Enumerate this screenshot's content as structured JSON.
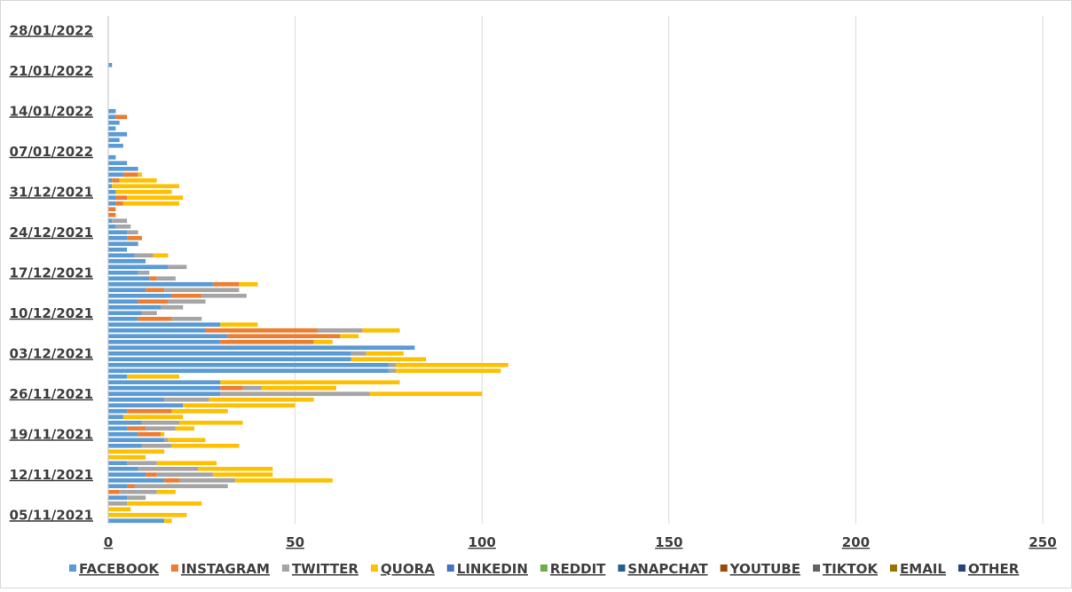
{
  "chart_data": {
    "type": "bar",
    "orientation": "horizontal",
    "stacked": true,
    "title": "",
    "xlabel": "",
    "ylabel": "",
    "xlim": [
      0,
      250
    ],
    "x_ticks": [
      0,
      50,
      100,
      150,
      200,
      250
    ],
    "y_tick_labels": [
      "05/11/2021",
      "12/11/2021",
      "19/11/2021",
      "26/11/2021",
      "03/12/2021",
      "10/12/2021",
      "17/12/2021",
      "24/12/2021",
      "31/12/2021",
      "07/01/2022",
      "14/01/2022",
      "21/01/2022",
      "28/01/2022"
    ],
    "grid": "vertical",
    "legend_position": "bottom",
    "series_names": [
      "FACEBOOK",
      "INSTAGRAM",
      "TWITTER",
      "QUORA",
      "LINKEDIN",
      "REDDIT",
      "SNAPCHAT",
      "YOUTUBE",
      "TIKTOK",
      "EMAIL",
      "OTHER"
    ],
    "colors": [
      "#5b9bd5",
      "#ed7d31",
      "#a5a5a5",
      "#ffc000",
      "#4472c4",
      "#70ad47",
      "#255e91",
      "#9e480e",
      "#636363",
      "#997300",
      "#264478"
    ],
    "categories": [
      "2021-11-04",
      "2021-11-05",
      "2021-11-06",
      "2021-11-07",
      "2021-11-08",
      "2021-11-09",
      "2021-11-10",
      "2021-11-11",
      "2021-11-12",
      "2021-11-13",
      "2021-11-14",
      "2021-11-15",
      "2021-11-16",
      "2021-11-17",
      "2021-11-18",
      "2021-11-19",
      "2021-11-20",
      "2021-11-21",
      "2021-11-22",
      "2021-11-23",
      "2021-11-24",
      "2021-11-25",
      "2021-11-26",
      "2021-11-27",
      "2021-11-28",
      "2021-11-29",
      "2021-11-30",
      "2021-12-01",
      "2021-12-02",
      "2021-12-03",
      "2021-12-04",
      "2021-12-05",
      "2021-12-06",
      "2021-12-07",
      "2021-12-08",
      "2021-12-09",
      "2021-12-10",
      "2021-12-11",
      "2021-12-12",
      "2021-12-13",
      "2021-12-14",
      "2021-12-15",
      "2021-12-16",
      "2021-12-17",
      "2021-12-18",
      "2021-12-19",
      "2021-12-20",
      "2021-12-21",
      "2021-12-22",
      "2021-12-23",
      "2021-12-24",
      "2021-12-25",
      "2021-12-26",
      "2021-12-27",
      "2021-12-28",
      "2021-12-29",
      "2021-12-30",
      "2021-12-31",
      "2022-01-01",
      "2022-01-02",
      "2022-01-03",
      "2022-01-04",
      "2022-01-05",
      "2022-01-06",
      "2022-01-07",
      "2022-01-08",
      "2022-01-09",
      "2022-01-10",
      "2022-01-11",
      "2022-01-12",
      "2022-01-13",
      "2022-01-14",
      "2022-01-15",
      "2022-01-16",
      "2022-01-17",
      "2022-01-18",
      "2022-01-19",
      "2022-01-20",
      "2022-01-21",
      "2022-01-22",
      "2022-01-23",
      "2022-01-24",
      "2022-01-25",
      "2022-01-26",
      "2022-01-27",
      "2022-01-28",
      "2022-01-29",
      "2022-01-30"
    ],
    "series": [
      {
        "values": [
          15,
          0,
          0,
          0,
          5,
          0,
          5,
          15,
          10,
          8,
          5,
          0,
          0,
          9,
          15,
          8,
          5,
          9,
          4,
          5,
          20,
          15,
          30,
          30,
          30,
          5,
          75,
          75,
          65,
          65,
          82,
          30,
          32,
          26,
          30,
          8,
          9,
          14,
          8,
          17,
          10,
          28,
          11,
          8,
          16,
          10,
          7,
          5,
          8,
          5,
          5,
          2,
          1,
          0,
          0,
          2,
          2,
          2,
          1,
          1,
          4,
          8,
          5,
          2,
          0,
          4,
          3,
          5,
          2,
          3,
          2,
          2,
          0,
          0,
          0,
          0,
          0,
          0,
          0,
          1,
          0,
          0,
          0,
          0,
          0,
          0,
          0,
          0
        ]
      },
      {
        "values": [
          0,
          0,
          0,
          0,
          0,
          3,
          2,
          4,
          3,
          0,
          0,
          0,
          0,
          0,
          0,
          6,
          5,
          0,
          0,
          12,
          0,
          0,
          0,
          6,
          0,
          0,
          0,
          0,
          0,
          0,
          0,
          25,
          30,
          30,
          0,
          9,
          0,
          0,
          8,
          8,
          5,
          7,
          2,
          0,
          0,
          0,
          0,
          0,
          0,
          4,
          0,
          0,
          0,
          2,
          2,
          2,
          3,
          0,
          0,
          2,
          4,
          0,
          0,
          0,
          0,
          0,
          0,
          0,
          0,
          0,
          3,
          0,
          0,
          0,
          0,
          0,
          0,
          0,
          0,
          0,
          0,
          0,
          0,
          0,
          0,
          0,
          0,
          0
        ]
      },
      {
        "values": [
          0,
          0,
          0,
          5,
          5,
          10,
          25,
          15,
          15,
          16,
          8,
          0,
          0,
          8,
          1,
          0,
          8,
          10,
          0,
          0,
          0,
          12,
          40,
          5,
          0,
          0,
          2,
          2,
          0,
          4,
          0,
          0,
          0,
          12,
          0,
          8,
          4,
          6,
          10,
          12,
          20,
          0,
          5,
          3,
          5,
          0,
          5,
          0,
          0,
          0,
          3,
          4,
          4,
          0,
          0,
          0,
          0,
          0,
          0,
          0,
          0,
          0,
          0,
          0,
          0,
          0,
          0,
          0,
          0,
          0,
          0,
          0,
          0,
          0,
          0,
          0,
          0,
          0,
          0,
          0,
          0,
          0,
          0,
          0,
          0,
          0,
          0,
          0
        ]
      },
      {
        "values": [
          2,
          21,
          6,
          20,
          0,
          5,
          0,
          26,
          16,
          20,
          16,
          10,
          15,
          18,
          10,
          1,
          5,
          17,
          16,
          15,
          30,
          28,
          30,
          20,
          48,
          14,
          28,
          30,
          20,
          10,
          0,
          5,
          5,
          10,
          10,
          0,
          0,
          0,
          0,
          0,
          0,
          5,
          0,
          0,
          0,
          0,
          4,
          0,
          0,
          0,
          0,
          0,
          0,
          0,
          0,
          15,
          15,
          15,
          18,
          10,
          1,
          0,
          0,
          0,
          0,
          0,
          0,
          0,
          0,
          0,
          0,
          0,
          0,
          0,
          0,
          0,
          0,
          0,
          0,
          0,
          0,
          0,
          0,
          0,
          0,
          0,
          0,
          0
        ]
      }
    ]
  },
  "legend": {
    "items": [
      "FACEBOOK",
      "INSTAGRAM",
      "TWITTER",
      "QUORA",
      "LINKEDIN",
      "REDDIT",
      "SNAPCHAT",
      "YOUTUBE",
      "TIKTOK",
      "EMAIL",
      "OTHER"
    ]
  }
}
